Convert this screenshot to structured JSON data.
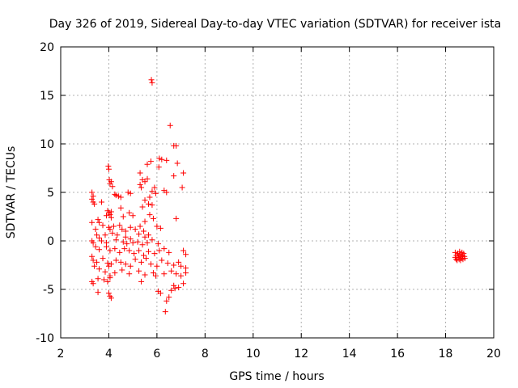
{
  "chart_data": {
    "type": "scatter",
    "title": "Day 326 of 2019, Sidereal Day-to-day VTEC variation (SDTVAR) for receiver ista",
    "xlabel": "GPS time / hours",
    "ylabel": "SDTVAR / TECUs",
    "xlim": [
      2,
      20
    ],
    "ylim": [
      -10,
      20
    ],
    "xticks": [
      2,
      4,
      6,
      8,
      10,
      12,
      14,
      16,
      18,
      20
    ],
    "yticks": [
      -10,
      -5,
      0,
      5,
      10,
      15,
      20
    ],
    "grid": true,
    "marker": "+",
    "color": "#ff0000",
    "series": [
      {
        "name": "SDTVAR",
        "points": [
          [
            5.77,
            16.6
          ],
          [
            5.8,
            16.3
          ],
          [
            6.55,
            11.9
          ],
          [
            6.7,
            9.8
          ],
          [
            6.8,
            9.8
          ],
          [
            6.1,
            8.5
          ],
          [
            6.2,
            8.4
          ],
          [
            6.4,
            8.3
          ],
          [
            5.75,
            8.2
          ],
          [
            5.6,
            7.9
          ],
          [
            6.85,
            8.0
          ],
          [
            3.98,
            7.7
          ],
          [
            4.0,
            7.4
          ],
          [
            6.08,
            7.6
          ],
          [
            5.3,
            7.0
          ],
          [
            7.1,
            7.0
          ],
          [
            6.7,
            6.7
          ],
          [
            4.02,
            6.3
          ],
          [
            4.1,
            6.1
          ],
          [
            4.05,
            5.9
          ],
          [
            5.4,
            6.3
          ],
          [
            5.5,
            6.1
          ],
          [
            5.3,
            5.8
          ],
          [
            5.35,
            5.5
          ],
          [
            5.6,
            6.4
          ],
          [
            4.15,
            5.6
          ],
          [
            5.9,
            5.5
          ],
          [
            7.05,
            5.5
          ],
          [
            5.8,
            5.1
          ],
          [
            6.3,
            5.2
          ],
          [
            6.4,
            5.0
          ],
          [
            5.95,
            4.9
          ],
          [
            4.8,
            5.0
          ],
          [
            4.9,
            4.9
          ],
          [
            3.3,
            5.0
          ],
          [
            3.35,
            4.6
          ],
          [
            4.3,
            4.7
          ],
          [
            4.4,
            4.6
          ],
          [
            4.5,
            4.5
          ],
          [
            5.7,
            4.5
          ],
          [
            4.25,
            4.8
          ],
          [
            3.3,
            4.3
          ],
          [
            3.35,
            4.0
          ],
          [
            3.4,
            3.8
          ],
          [
            3.7,
            4.0
          ],
          [
            5.5,
            4.2
          ],
          [
            5.65,
            3.8
          ],
          [
            4.5,
            3.4
          ],
          [
            5.4,
            3.5
          ],
          [
            5.8,
            3.7
          ],
          [
            3.95,
            3.1
          ],
          [
            4.0,
            2.9
          ],
          [
            4.05,
            2.7
          ],
          [
            4.1,
            3.0
          ],
          [
            3.9,
            2.6
          ],
          [
            4.1,
            2.4
          ],
          [
            4.6,
            2.5
          ],
          [
            4.85,
            2.9
          ],
          [
            5.0,
            2.6
          ],
          [
            5.5,
            2.0
          ],
          [
            5.7,
            2.7
          ],
          [
            5.85,
            2.3
          ],
          [
            6.8,
            2.3
          ],
          [
            3.55,
            2.2
          ],
          [
            3.6,
            1.9
          ],
          [
            3.3,
            1.9
          ],
          [
            3.75,
            1.6
          ],
          [
            4.0,
            1.4
          ],
          [
            4.05,
            1.2
          ],
          [
            4.2,
            1.5
          ],
          [
            4.45,
            1.6
          ],
          [
            4.55,
            1.2
          ],
          [
            4.7,
            1.0
          ],
          [
            4.9,
            1.4
          ],
          [
            5.1,
            1.2
          ],
          [
            5.3,
            1.5
          ],
          [
            5.45,
            1.0
          ],
          [
            6.0,
            1.5
          ],
          [
            6.15,
            1.3
          ],
          [
            3.45,
            1.2
          ],
          [
            3.5,
            0.6
          ],
          [
            3.6,
            0.3
          ],
          [
            3.85,
            0.6
          ],
          [
            4.15,
            0.8
          ],
          [
            4.35,
            0.6
          ],
          [
            4.7,
            0.4
          ],
          [
            4.9,
            0.2
          ],
          [
            5.25,
            0.7
          ],
          [
            5.5,
            0.4
          ],
          [
            5.65,
            0.6
          ],
          [
            3.3,
            0.0
          ],
          [
            3.35,
            -0.2
          ],
          [
            3.7,
            0.0
          ],
          [
            3.9,
            -0.2
          ],
          [
            4.3,
            0.1
          ],
          [
            4.6,
            -0.1
          ],
          [
            4.75,
            -0.3
          ],
          [
            5.0,
            -0.2
          ],
          [
            5.2,
            -0.1
          ],
          [
            5.4,
            -0.4
          ],
          [
            5.6,
            -0.2
          ],
          [
            5.8,
            0.1
          ],
          [
            6.05,
            -0.3
          ],
          [
            3.45,
            -0.6
          ],
          [
            3.6,
            -0.9
          ],
          [
            3.9,
            -0.6
          ],
          [
            4.05,
            -1.0
          ],
          [
            4.25,
            -0.8
          ],
          [
            4.45,
            -1.2
          ],
          [
            4.65,
            -0.8
          ],
          [
            4.85,
            -1.0
          ],
          [
            5.05,
            -1.3
          ],
          [
            5.25,
            -1.0
          ],
          [
            5.45,
            -1.5
          ],
          [
            5.65,
            -1.1
          ],
          [
            5.9,
            -1.3
          ],
          [
            6.1,
            -1.0
          ],
          [
            6.3,
            -0.8
          ],
          [
            6.5,
            -1.2
          ],
          [
            7.1,
            -1.0
          ],
          [
            7.2,
            -1.4
          ],
          [
            3.3,
            -1.6
          ],
          [
            3.35,
            -2.0
          ],
          [
            3.5,
            -2.2
          ],
          [
            3.75,
            -1.8
          ],
          [
            3.95,
            -2.3
          ],
          [
            4.0,
            -2.6
          ],
          [
            4.1,
            -2.4
          ],
          [
            4.3,
            -2.0
          ],
          [
            4.5,
            -2.2
          ],
          [
            4.7,
            -2.4
          ],
          [
            4.9,
            -2.6
          ],
          [
            5.1,
            -1.9
          ],
          [
            5.35,
            -2.2
          ],
          [
            5.55,
            -1.8
          ],
          [
            5.75,
            -2.4
          ],
          [
            6.0,
            -2.6
          ],
          [
            6.2,
            -2.0
          ],
          [
            6.45,
            -2.3
          ],
          [
            6.7,
            -2.5
          ],
          [
            6.9,
            -2.2
          ],
          [
            7.0,
            -2.6
          ],
          [
            7.2,
            -2.8
          ],
          [
            3.4,
            -2.6
          ],
          [
            3.6,
            -2.9
          ],
          [
            3.85,
            -3.2
          ],
          [
            4.05,
            -3.6
          ],
          [
            4.25,
            -3.3
          ],
          [
            4.55,
            -3.0
          ],
          [
            4.85,
            -3.4
          ],
          [
            5.25,
            -3.1
          ],
          [
            5.5,
            -3.5
          ],
          [
            5.85,
            -3.3
          ],
          [
            6.3,
            -3.4
          ],
          [
            6.6,
            -3.1
          ],
          [
            6.8,
            -3.4
          ],
          [
            7.0,
            -3.6
          ],
          [
            7.2,
            -3.3
          ],
          [
            3.3,
            -4.2
          ],
          [
            3.35,
            -4.4
          ],
          [
            3.55,
            -3.9
          ],
          [
            3.8,
            -4.0
          ],
          [
            3.95,
            -4.2
          ],
          [
            4.05,
            -3.8
          ],
          [
            5.35,
            -4.2
          ],
          [
            6.7,
            -4.6
          ],
          [
            6.9,
            -4.8
          ],
          [
            7.1,
            -4.4
          ],
          [
            6.05,
            -5.2
          ],
          [
            6.15,
            -5.4
          ],
          [
            6.6,
            -5.1
          ],
          [
            6.75,
            -4.9
          ],
          [
            3.55,
            -5.3
          ],
          [
            4.0,
            -5.4
          ],
          [
            4.05,
            -5.7
          ],
          [
            4.1,
            -5.9
          ],
          [
            6.5,
            -5.8
          ],
          [
            6.4,
            -6.2
          ],
          [
            6.35,
            -7.3
          ],
          [
            5.95,
            -3.6
          ],
          [
            18.4,
            -1.2
          ],
          [
            18.45,
            -1.5
          ],
          [
            18.5,
            -1.3
          ],
          [
            18.55,
            -1.7
          ],
          [
            18.6,
            -1.4
          ],
          [
            18.65,
            -1.8
          ],
          [
            18.7,
            -1.5
          ],
          [
            18.75,
            -1.3
          ],
          [
            18.4,
            -1.7
          ],
          [
            18.48,
            -2.0
          ],
          [
            18.58,
            -1.1
          ],
          [
            18.62,
            -2.0
          ],
          [
            18.72,
            -1.9
          ],
          [
            18.78,
            -1.6
          ],
          [
            18.52,
            -1.5
          ],
          [
            18.68,
            -1.2
          ],
          [
            18.44,
            -1.9
          ],
          [
            18.8,
            -1.8
          ],
          [
            18.56,
            -1.9
          ],
          [
            18.66,
            -1.6
          ]
        ]
      }
    ]
  }
}
